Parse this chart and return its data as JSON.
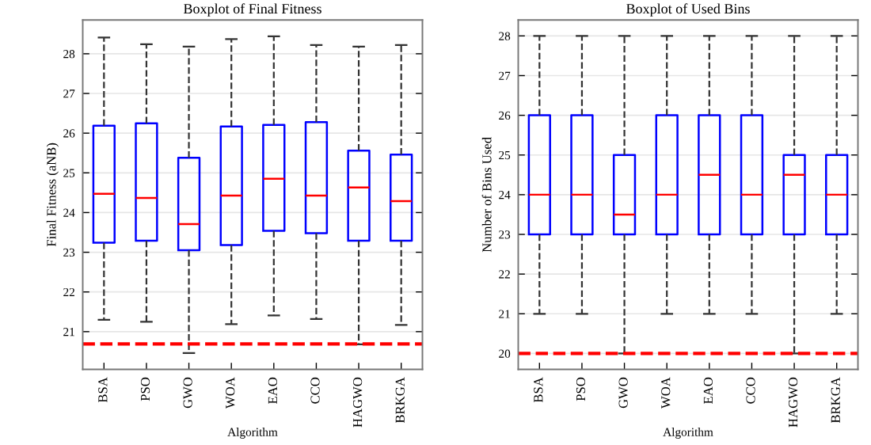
{
  "chart_data": [
    {
      "type": "box",
      "title": "Boxplot of Final Fitness",
      "xlabel": "Algorithm",
      "ylabel": "Final Fitness (aNB)",
      "categories": [
        "BSA",
        "PSO",
        "GWO",
        "WOA",
        "EAO",
        "CCO",
        "HAGWO",
        "BRKGA"
      ],
      "boxes": [
        {
          "low": 21.3,
          "q1": 23.24,
          "median": 24.47,
          "q3": 26.19,
          "high": 28.41
        },
        {
          "low": 21.25,
          "q1": 23.29,
          "median": 24.37,
          "q3": 26.25,
          "high": 28.24
        },
        {
          "low": 20.46,
          "q1": 23.05,
          "median": 23.71,
          "q3": 25.38,
          "high": 28.18
        },
        {
          "low": 21.19,
          "q1": 23.18,
          "median": 24.43,
          "q3": 26.17,
          "high": 28.37
        },
        {
          "low": 21.41,
          "q1": 23.54,
          "median": 24.85,
          "q3": 26.21,
          "high": 28.44
        },
        {
          "low": 21.32,
          "q1": 23.48,
          "median": 24.43,
          "q3": 26.28,
          "high": 28.22
        },
        {
          "low": 20.68,
          "q1": 23.29,
          "median": 24.63,
          "q3": 25.56,
          "high": 28.18
        },
        {
          "low": 21.17,
          "q1": 23.29,
          "median": 24.29,
          "q3": 25.46,
          "high": 28.22
        }
      ],
      "color": "#0000ff",
      "ylim": [
        20.05,
        28.85
      ],
      "yticks": [
        21,
        22,
        23,
        24,
        25,
        26,
        27,
        28
      ],
      "grid": "y",
      "ref_lines": [
        {
          "axis": "y",
          "value": 20.69,
          "color": "#ff0000",
          "line_style": "dashed"
        }
      ]
    },
    {
      "type": "box",
      "title": "Boxplot of Used Bins",
      "xlabel": "Algorithm",
      "ylabel": "Number of Bins Used",
      "categories": [
        "BSA",
        "PSO",
        "GWO",
        "WOA",
        "EAO",
        "CCO",
        "HAGWO",
        "BRKGA"
      ],
      "boxes": [
        {
          "low": 21,
          "q1": 23,
          "median": 24,
          "q3": 26,
          "high": 28
        },
        {
          "low": 21,
          "q1": 23,
          "median": 24,
          "q3": 26,
          "high": 28
        },
        {
          "low": 20,
          "q1": 23,
          "median": 23.5,
          "q3": 25,
          "high": 28
        },
        {
          "low": 21,
          "q1": 23,
          "median": 24,
          "q3": 26,
          "high": 28
        },
        {
          "low": 21,
          "q1": 23,
          "median": 24.5,
          "q3": 26,
          "high": 28
        },
        {
          "low": 21,
          "q1": 23,
          "median": 24,
          "q3": 26,
          "high": 28
        },
        {
          "low": 20,
          "q1": 23,
          "median": 24.5,
          "q3": 25,
          "high": 28
        },
        {
          "low": 21,
          "q1": 23,
          "median": 24,
          "q3": 25,
          "high": 28
        }
      ],
      "color": "#0000ff",
      "ylim": [
        19.6,
        28.4
      ],
      "yticks": [
        20,
        21,
        22,
        23,
        24,
        25,
        26,
        27,
        28
      ],
      "grid": "y",
      "ref_lines": [
        {
          "axis": "y",
          "value": 20,
          "color": "#ff0000",
          "line_style": "dashed"
        }
      ]
    }
  ]
}
